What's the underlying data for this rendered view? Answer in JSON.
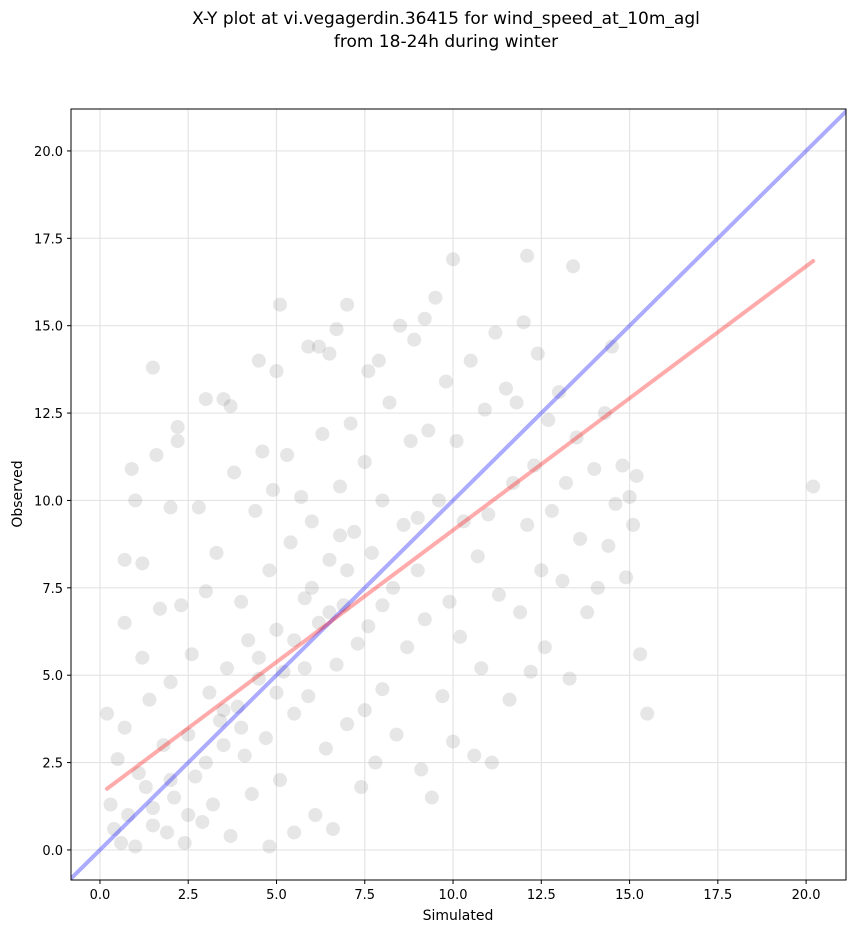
{
  "chart_data": {
    "type": "scatter",
    "title": [
      "X-Y plot at vi.vegagerdin.36415 for wind_speed_at_10m_agl",
      "from 18-24h during winter"
    ],
    "xlabel": "Simulated",
    "ylabel": "Observed",
    "xlim": [
      -0.82,
      21.13
    ],
    "ylim": [
      -0.86,
      21.2
    ],
    "xticks": [
      {
        "value": 0,
        "label": "0.0"
      },
      2.5,
      {
        "value": 5,
        "label": "5.0"
      },
      7.5,
      {
        "value": 10,
        "label": "10.0"
      },
      12.5,
      {
        "value": 15,
        "label": "15.0"
      },
      17.5,
      {
        "value": 20,
        "label": "20.0"
      }
    ],
    "yticks": [
      {
        "value": 0,
        "label": "0.0"
      },
      2.5,
      {
        "value": 5,
        "label": "5.0"
      },
      7.5,
      {
        "value": 10,
        "label": "10.0"
      },
      12.5,
      {
        "value": 15,
        "label": "15.0"
      },
      17.5,
      {
        "value": 20,
        "label": "20.0"
      }
    ],
    "grid": true,
    "point_color": "#555555",
    "points": [
      [
        0.2,
        3.9
      ],
      [
        0.3,
        1.3
      ],
      [
        0.4,
        0.6
      ],
      [
        0.5,
        2.6
      ],
      [
        0.6,
        0.2
      ],
      [
        0.7,
        3.5
      ],
      [
        0.7,
        8.3
      ],
      [
        0.7,
        6.5
      ],
      [
        0.8,
        1.0
      ],
      [
        0.9,
        10.9
      ],
      [
        1.0,
        10.0
      ],
      [
        1.0,
        0.1
      ],
      [
        1.1,
        2.2
      ],
      [
        1.2,
        5.5
      ],
      [
        1.2,
        8.2
      ],
      [
        1.3,
        1.8
      ],
      [
        1.4,
        4.3
      ],
      [
        1.5,
        13.8
      ],
      [
        1.5,
        0.7
      ],
      [
        1.6,
        11.3
      ],
      [
        1.7,
        6.9
      ],
      [
        1.8,
        3.0
      ],
      [
        1.9,
        0.5
      ],
      [
        2.0,
        9.8
      ],
      [
        2.0,
        4.8
      ],
      [
        2.1,
        1.5
      ],
      [
        2.2,
        12.1
      ],
      [
        2.2,
        11.7
      ],
      [
        2.3,
        7.0
      ],
      [
        2.4,
        0.2
      ],
      [
        2.5,
        3.3
      ],
      [
        2.6,
        5.6
      ],
      [
        2.7,
        2.1
      ],
      [
        2.8,
        9.8
      ],
      [
        2.9,
        0.8
      ],
      [
        3.0,
        12.9
      ],
      [
        3.0,
        7.4
      ],
      [
        3.1,
        4.5
      ],
      [
        3.2,
        1.3
      ],
      [
        3.3,
        8.5
      ],
      [
        3.4,
        3.7
      ],
      [
        3.5,
        12.9
      ],
      [
        3.6,
        5.2
      ],
      [
        3.7,
        12.7
      ],
      [
        3.7,
        0.4
      ],
      [
        3.8,
        10.8
      ],
      [
        3.9,
        4.1
      ],
      [
        4.0,
        7.1
      ],
      [
        4.1,
        2.7
      ],
      [
        4.2,
        6.0
      ],
      [
        4.3,
        1.6
      ],
      [
        4.4,
        9.7
      ],
      [
        4.5,
        14.0
      ],
      [
        4.5,
        4.9
      ],
      [
        4.6,
        11.4
      ],
      [
        4.7,
        3.2
      ],
      [
        4.8,
        8.0
      ],
      [
        4.8,
        0.1
      ],
      [
        4.9,
        10.3
      ],
      [
        5.0,
        13.7
      ],
      [
        5.0,
        6.3
      ],
      [
        5.1,
        15.6
      ],
      [
        5.1,
        2.0
      ],
      [
        5.2,
        5.1
      ],
      [
        5.3,
        11.3
      ],
      [
        5.4,
        8.8
      ],
      [
        5.5,
        0.5
      ],
      [
        5.5,
        3.9
      ],
      [
        5.7,
        10.1
      ],
      [
        5.8,
        7.2
      ],
      [
        5.9,
        14.4
      ],
      [
        5.9,
        4.4
      ],
      [
        6.0,
        9.4
      ],
      [
        6.1,
        1.0
      ],
      [
        6.2,
        14.4
      ],
      [
        6.2,
        6.5
      ],
      [
        6.3,
        11.9
      ],
      [
        6.4,
        2.9
      ],
      [
        6.5,
        14.2
      ],
      [
        6.5,
        8.3
      ],
      [
        6.6,
        0.6
      ],
      [
        6.7,
        14.9
      ],
      [
        6.7,
        5.3
      ],
      [
        6.8,
        10.4
      ],
      [
        6.9,
        7.0
      ],
      [
        7.0,
        15.6
      ],
      [
        7.0,
        3.6
      ],
      [
        7.1,
        12.2
      ],
      [
        7.2,
        9.1
      ],
      [
        7.3,
        5.9
      ],
      [
        7.4,
        1.8
      ],
      [
        7.5,
        11.1
      ],
      [
        7.6,
        13.7
      ],
      [
        7.6,
        6.4
      ],
      [
        7.7,
        8.5
      ],
      [
        7.8,
        2.5
      ],
      [
        7.9,
        14.0
      ],
      [
        8.0,
        10.0
      ],
      [
        8.0,
        4.6
      ],
      [
        8.2,
        12.8
      ],
      [
        8.3,
        7.5
      ],
      [
        8.4,
        3.3
      ],
      [
        8.5,
        15.0
      ],
      [
        8.6,
        9.3
      ],
      [
        8.7,
        5.8
      ],
      [
        8.8,
        11.7
      ],
      [
        8.9,
        14.6
      ],
      [
        9.0,
        8.0
      ],
      [
        9.1,
        2.3
      ],
      [
        9.2,
        15.2
      ],
      [
        9.2,
        6.6
      ],
      [
        9.3,
        12.0
      ],
      [
        9.4,
        1.5
      ],
      [
        9.5,
        15.8
      ],
      [
        9.6,
        10.0
      ],
      [
        9.7,
        4.4
      ],
      [
        9.8,
        13.4
      ],
      [
        9.9,
        7.1
      ],
      [
        10.0,
        16.9
      ],
      [
        10.0,
        3.1
      ],
      [
        10.1,
        11.7
      ],
      [
        10.2,
        6.1
      ],
      [
        10.3,
        9.4
      ],
      [
        10.5,
        14.0
      ],
      [
        10.6,
        2.7
      ],
      [
        10.7,
        8.4
      ],
      [
        10.8,
        5.2
      ],
      [
        10.9,
        12.6
      ],
      [
        11.0,
        9.6
      ],
      [
        11.1,
        2.5
      ],
      [
        11.2,
        14.8
      ],
      [
        11.3,
        7.3
      ],
      [
        11.5,
        13.2
      ],
      [
        11.6,
        4.3
      ],
      [
        11.7,
        10.5
      ],
      [
        11.8,
        12.8
      ],
      [
        11.9,
        6.8
      ],
      [
        12.0,
        15.1
      ],
      [
        12.1,
        17.0
      ],
      [
        12.1,
        9.3
      ],
      [
        12.2,
        5.1
      ],
      [
        12.3,
        11.0
      ],
      [
        12.4,
        14.2
      ],
      [
        12.5,
        8.0
      ],
      [
        12.6,
        5.8
      ],
      [
        12.7,
        12.3
      ],
      [
        12.8,
        9.7
      ],
      [
        13.0,
        13.1
      ],
      [
        13.1,
        7.7
      ],
      [
        13.2,
        10.5
      ],
      [
        13.3,
        4.9
      ],
      [
        13.4,
        16.7
      ],
      [
        13.5,
        11.8
      ],
      [
        13.6,
        8.9
      ],
      [
        13.8,
        6.8
      ],
      [
        14.0,
        10.9
      ],
      [
        14.1,
        7.5
      ],
      [
        14.3,
        12.5
      ],
      [
        14.4,
        8.7
      ],
      [
        14.5,
        14.4
      ],
      [
        14.6,
        9.9
      ],
      [
        14.8,
        11.0
      ],
      [
        14.9,
        7.8
      ],
      [
        15.0,
        10.1
      ],
      [
        15.1,
        9.3
      ],
      [
        15.2,
        10.7
      ],
      [
        15.3,
        5.6
      ],
      [
        15.5,
        3.9
      ],
      [
        20.2,
        10.4
      ],
      [
        2.5,
        1.0
      ],
      [
        3.0,
        2.5
      ],
      [
        3.5,
        4.0
      ],
      [
        4.0,
        3.5
      ],
      [
        5.5,
        6.0
      ],
      [
        6.0,
        7.5
      ],
      [
        6.5,
        6.8
      ],
      [
        7.0,
        8.0
      ],
      [
        5.0,
        4.5
      ],
      [
        4.5,
        5.5
      ],
      [
        3.5,
        3.0
      ],
      [
        2.0,
        2.0
      ],
      [
        1.5,
        1.2
      ],
      [
        6.8,
        9.0
      ],
      [
        8.0,
        7.0
      ],
      [
        7.5,
        4.0
      ],
      [
        9.0,
        9.5
      ],
      [
        5.8,
        5.2
      ]
    ],
    "lines": [
      {
        "color": "#0000ff",
        "x": [
          -0.82,
          21.2
        ],
        "y": [
          -0.82,
          21.2
        ]
      },
      {
        "color": "#ff0000",
        "x": [
          0.2,
          20.2
        ],
        "y": [
          1.75,
          16.85
        ]
      }
    ]
  }
}
